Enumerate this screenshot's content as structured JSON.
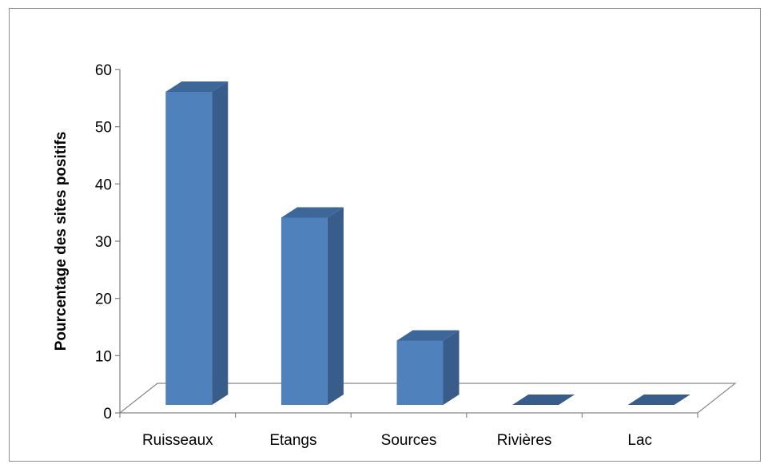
{
  "chart_data": {
    "type": "bar",
    "style": "3d-column",
    "categories": [
      "Ruisseaux",
      "Etangs",
      "Sources",
      "Rivières",
      "Lac"
    ],
    "values": [
      56,
      33.5,
      11.5,
      0,
      0
    ],
    "title": "",
    "xlabel": "",
    "ylabel": "Pourcentage des sites positifs",
    "ylim": [
      0,
      60
    ],
    "yticks": [
      "0",
      "10",
      "20",
      "30",
      "40",
      "50",
      "60"
    ],
    "grid": false,
    "legend": "none",
    "colors": {
      "bar_front": "#4f81bd",
      "bar_side": "#385d8a",
      "bar_top": "#3d6798",
      "floor_stroke": "#868686",
      "axis": "#868686"
    }
  }
}
